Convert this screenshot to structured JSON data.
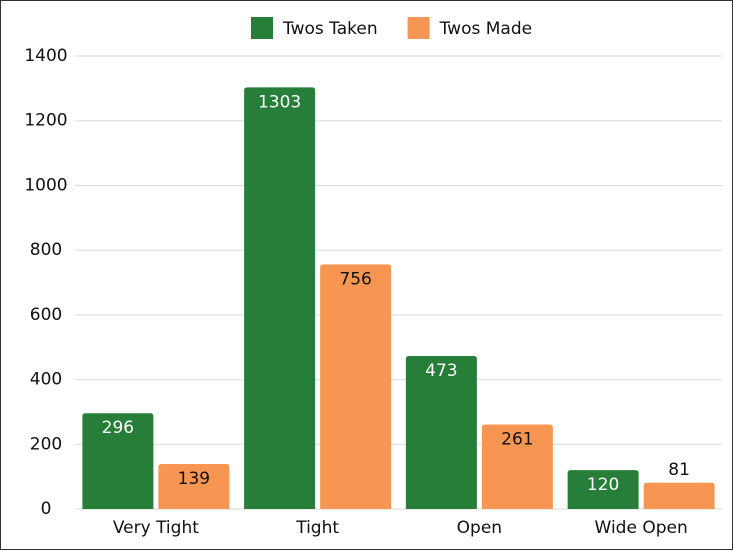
{
  "chart_data": {
    "type": "bar",
    "categories": [
      "Very Tight",
      "Tight",
      "Open",
      "Wide Open"
    ],
    "series": [
      {
        "name": "Twos Taken",
        "color": "#277e38",
        "values": [
          296,
          1303,
          473,
          120
        ]
      },
      {
        "name": "Twos Made",
        "color": "#f79653",
        "values": [
          139,
          756,
          261,
          81
        ]
      }
    ],
    "ylim": [
      0,
      1400
    ],
    "yticks": [
      0,
      200,
      400,
      600,
      800,
      1000,
      1200,
      1400
    ],
    "grid": true,
    "legend": "top"
  }
}
